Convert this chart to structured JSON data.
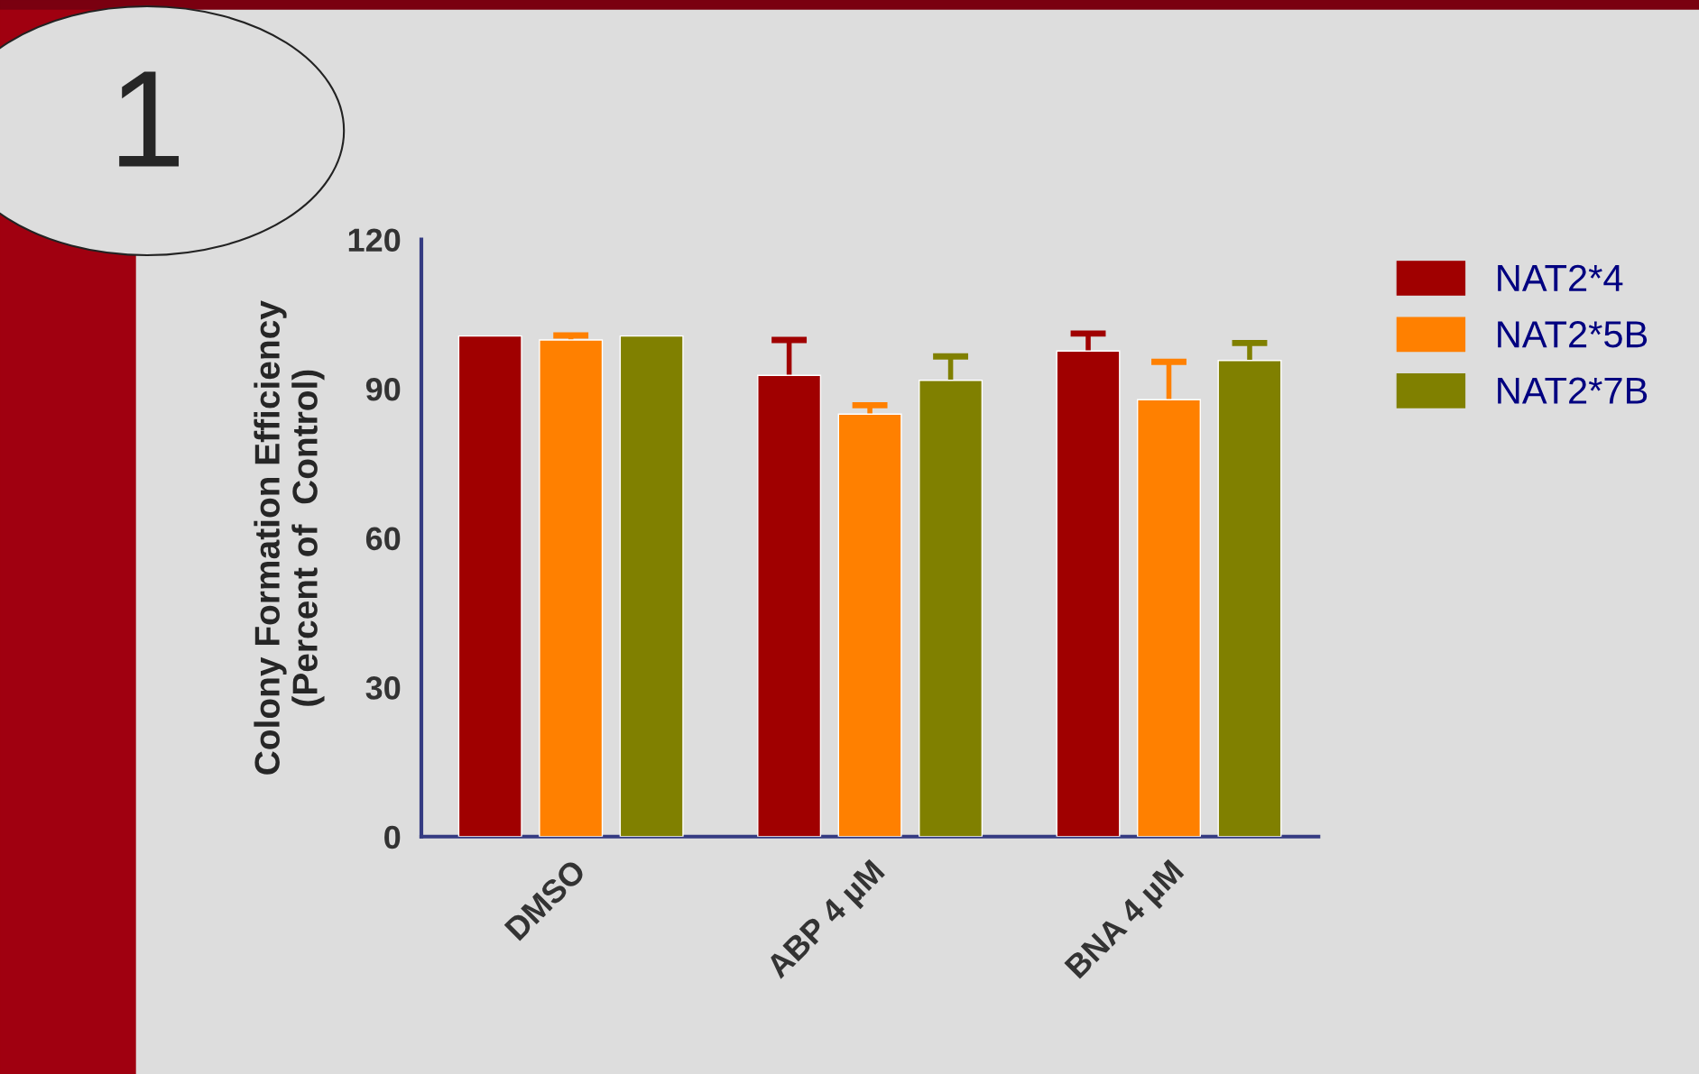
{
  "chart_data": {
    "type": "bar",
    "ylabel": "Colony Formation Efficiency\n(Percent of  Control)",
    "categories": [
      "DMSO",
      "ABP 4 µM",
      "BNA 4 µM"
    ],
    "series": [
      {
        "name": "NAT2*4",
        "color": "#a00000",
        "values": [
          100.6,
          92.7,
          97.6
        ],
        "errors": [
          null,
          7.1,
          3.5
        ]
      },
      {
        "name": "NAT2*5B",
        "color": "#ff8000",
        "values": [
          99.8,
          84.9,
          87.8
        ],
        "errors": [
          0.9,
          1.8,
          7.6
        ]
      },
      {
        "name": "NAT2*7B",
        "color": "#808000",
        "values": [
          100.6,
          91.7,
          95.7
        ],
        "errors": [
          null,
          4.8,
          3.5
        ]
      }
    ],
    "ylim": [
      0,
      120
    ],
    "yticks": [
      0,
      30,
      60,
      90,
      120
    ],
    "grid": false,
    "legend": "top right",
    "annotations": [
      "1"
    ]
  }
}
